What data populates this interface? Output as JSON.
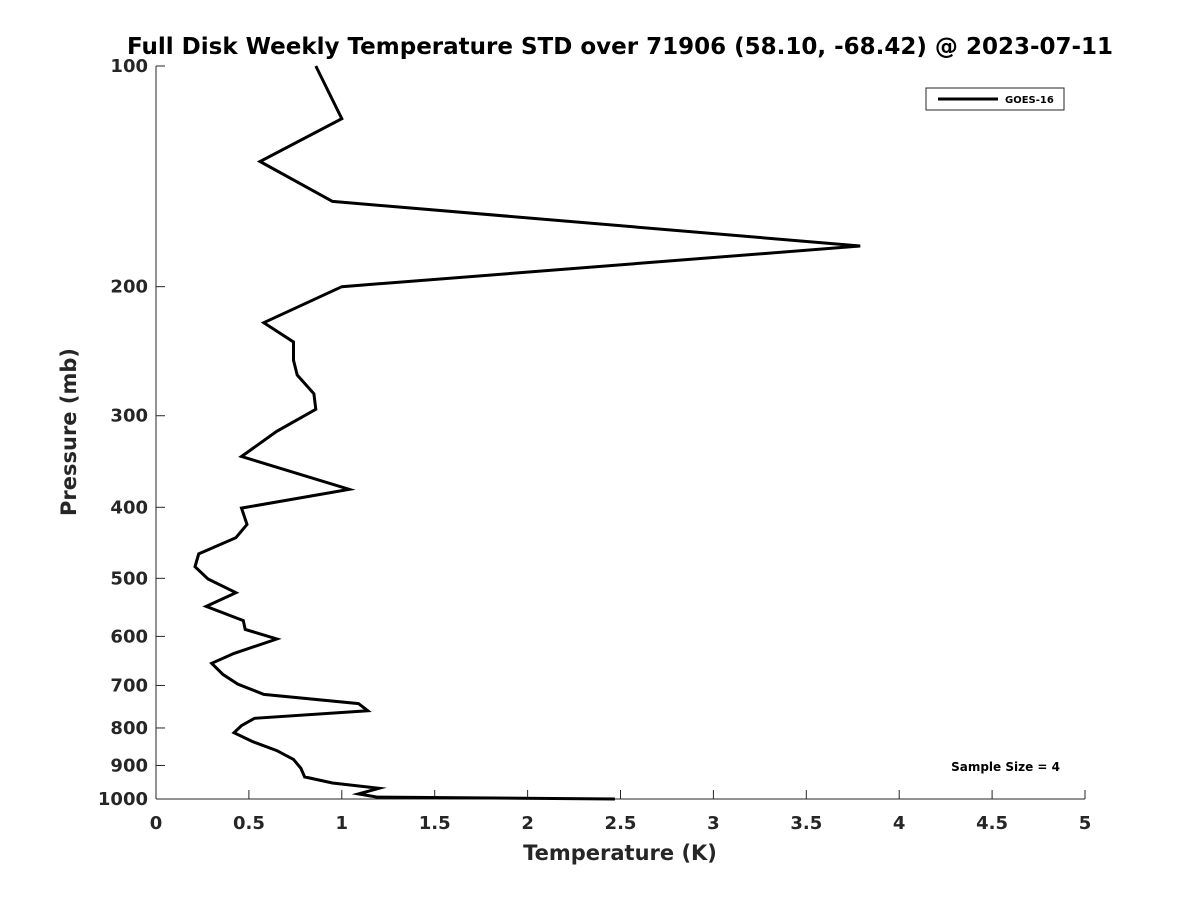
{
  "chart_data": {
    "type": "line",
    "title": "Full Disk Weekly Temperature STD over 71906 (58.10, -68.42) @ 2023-07-11",
    "xlabel": "Temperature (K)",
    "ylabel": "Pressure (mb)",
    "xlim": [
      0,
      5
    ],
    "ylim": [
      100,
      1000
    ],
    "y_scale": "log",
    "y_reversed": true,
    "x_ticks": [
      "0",
      "0.5",
      "1",
      "1.5",
      "2",
      "2.5",
      "3",
      "3.5",
      "4",
      "4.5",
      "5"
    ],
    "y_ticks": [
      "100",
      "200",
      "300",
      "400",
      "500",
      "600",
      "700",
      "800",
      "900",
      "1000"
    ],
    "grid": false,
    "legend_position": "top-right",
    "annotation": "Sample Size = 4",
    "series": [
      {
        "name": "GOES-16",
        "color": "#000000",
        "x": [
          0.86,
          1.0,
          0.56,
          0.95,
          3.79,
          1.0,
          0.58,
          0.74,
          0.74,
          0.76,
          0.85,
          0.86,
          0.65,
          0.46,
          1.04,
          0.46,
          0.49,
          0.43,
          0.23,
          0.21,
          0.28,
          0.43,
          0.27,
          0.47,
          0.48,
          0.65,
          0.42,
          0.3,
          0.36,
          0.44,
          0.58,
          1.09,
          1.14,
          0.53,
          0.46,
          0.42,
          0.52,
          0.65,
          0.74,
          0.78,
          0.8,
          0.95,
          1.2,
          1.09,
          1.19,
          2.47
        ],
        "y": [
          100,
          118,
          135,
          153,
          176,
          200,
          224,
          238,
          252,
          264,
          280,
          294,
          315,
          341,
          378,
          401,
          422,
          440,
          463,
          482,
          501,
          523,
          546,
          571,
          587,
          605,
          633,
          653,
          676,
          697,
          720,
          741,
          758,
          776,
          794,
          812,
          835,
          859,
          883,
          908,
          933,
          951,
          967,
          984,
          994,
          1000
        ]
      }
    ]
  }
}
